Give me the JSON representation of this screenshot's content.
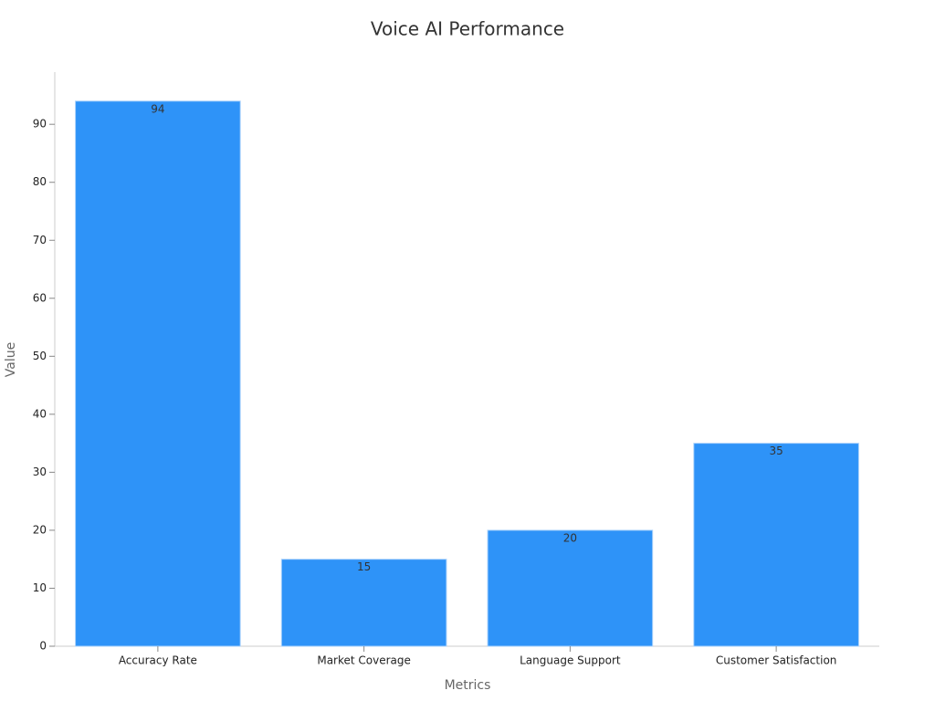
{
  "chart_data": {
    "type": "bar",
    "title": "Voice AI Performance",
    "x_label": "Metrics",
    "y_label": "Value",
    "categories": [
      "Accuracy Rate",
      "Market Coverage",
      "Language Support",
      "Customer Satisfaction"
    ],
    "values": [
      94,
      15,
      20,
      35
    ],
    "color": "#2e93f8",
    "ylim": [
      0,
      99
    ],
    "yticks": [
      0,
      10,
      20,
      30,
      40,
      50,
      60,
      70,
      80,
      90
    ],
    "grid": false
  }
}
